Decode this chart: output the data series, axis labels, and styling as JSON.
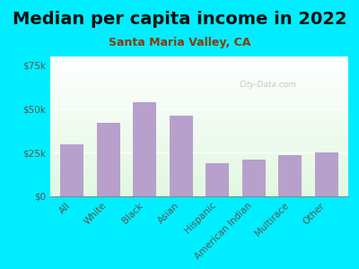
{
  "title": "Median per capita income in 2022",
  "subtitle": "Santa Maria Valley, CA",
  "categories": [
    "All",
    "White",
    "Black",
    "Asian",
    "Hispanic",
    "American Indian",
    "Multirace",
    "Other"
  ],
  "values": [
    30000,
    42000,
    54000,
    46000,
    19000,
    21000,
    23500,
    25000
  ],
  "bar_color": "#b8a0cc",
  "background_outer": "#00eeff",
  "ylabel_ticks": [
    "$0",
    "$25k",
    "$50k",
    "$75k"
  ],
  "ytick_values": [
    0,
    25000,
    50000,
    75000
  ],
  "ylim": [
    0,
    80000
  ],
  "title_fontsize": 14,
  "subtitle_fontsize": 9,
  "tick_fontsize": 7.5,
  "watermark": "City-Data.com"
}
